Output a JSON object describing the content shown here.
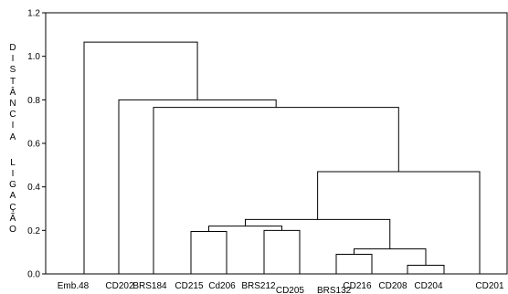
{
  "chart_data": {
    "type": "dendrogram",
    "title": "",
    "xlabel": "",
    "ylabel": "DISTÂNCIA LIGAÇÃO",
    "ylim": [
      0,
      1.2
    ],
    "yticks": [
      "0.0",
      "0.2",
      "0.4",
      "0.6",
      "0.8",
      "1.0",
      "1.2"
    ],
    "grid": false,
    "leaves": [
      "Emb.48",
      "CD202",
      "BRS184",
      "CD215",
      "Cd206",
      "BRS212",
      "CD205",
      "BRS132",
      "CD216",
      "CD208",
      "CD204",
      "CD201"
    ],
    "merges": [
      {
        "left": "CD208",
        "right": "CD204",
        "height": 0.04
      },
      {
        "left": "CD216",
        "right": "BRS132",
        "height": 0.09
      },
      {
        "left": "CD216+BRS132",
        "right": "CD208+CD204",
        "height": 0.115
      },
      {
        "left": "BRS212",
        "right": "CD205",
        "height": 0.2
      },
      {
        "left": "CD215",
        "right": "Cd206",
        "height": 0.195
      },
      {
        "left": "CD215+Cd206",
        "right": "BRS212+CD205",
        "height": 0.22
      },
      {
        "left": "CD215..CD205",
        "right": "CD216..CD204",
        "height": 0.25
      },
      {
        "left": "CD215..CD204",
        "right": "CD201",
        "height": 0.47
      },
      {
        "left": "BRS184",
        "right": "CD215..CD201",
        "height": 0.765
      },
      {
        "left": "CD202",
        "right": "BRS184..CD201",
        "height": 0.8
      },
      {
        "left": "Emb.48",
        "right": "CD202..CD201",
        "height": 1.065
      }
    ]
  }
}
